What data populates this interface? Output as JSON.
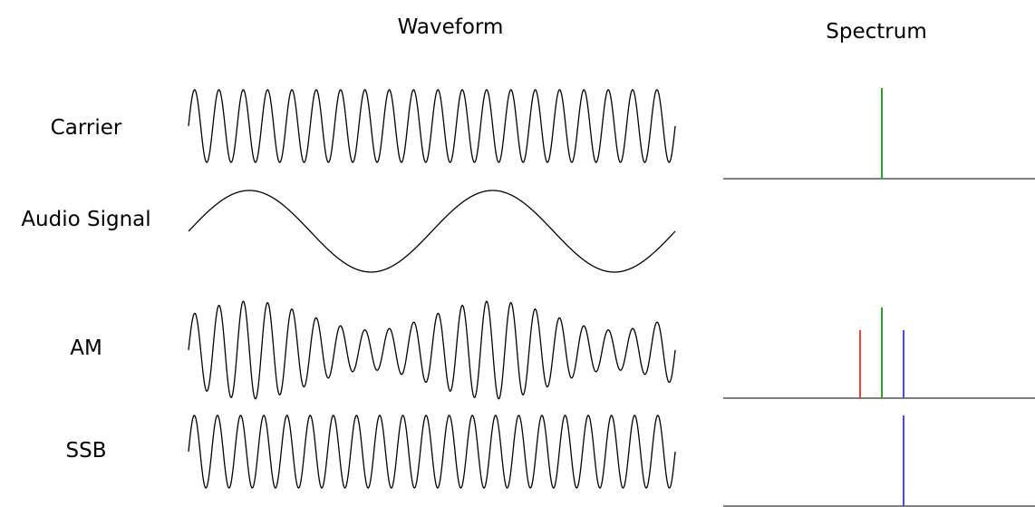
{
  "headers": {
    "waveform": "Waveform",
    "spectrum": "Spectrum"
  },
  "rows": [
    {
      "key": "carrier",
      "label": "Carrier"
    },
    {
      "key": "audio",
      "label": "Audio Signal"
    },
    {
      "key": "am",
      "label": "AM"
    },
    {
      "key": "ssb",
      "label": "SSB"
    }
  ],
  "waveforms": {
    "carrier": {
      "cycles": 20,
      "shape": "sine"
    },
    "audio": {
      "cycles": 2,
      "shape": "sine"
    },
    "am": {
      "cycles": 20,
      "shape": "amplitude-modulated",
      "modulation_cycles": 2
    },
    "ssb": {
      "cycles": 21,
      "shape": "sine"
    }
  },
  "spectra": {
    "carrier": [
      {
        "component": "carrier",
        "color": "#2ca02c",
        "level": 1.0
      }
    ],
    "am": [
      {
        "component": "lower-sideband",
        "color": "#e8413f",
        "level": 0.75
      },
      {
        "component": "carrier",
        "color": "#2ca02c",
        "level": 1.0
      },
      {
        "component": "upper-sideband",
        "color": "#4a4ae8",
        "level": 0.75
      }
    ],
    "ssb": [
      {
        "component": "upper-sideband",
        "color": "#4a4ae8",
        "level": 1.0
      }
    ]
  },
  "colors": {
    "stroke": "#000000",
    "axis": "#333333",
    "carrier": "#2ca02c",
    "lower_sideband": "#e8413f",
    "upper_sideband": "#4a4ae8"
  }
}
